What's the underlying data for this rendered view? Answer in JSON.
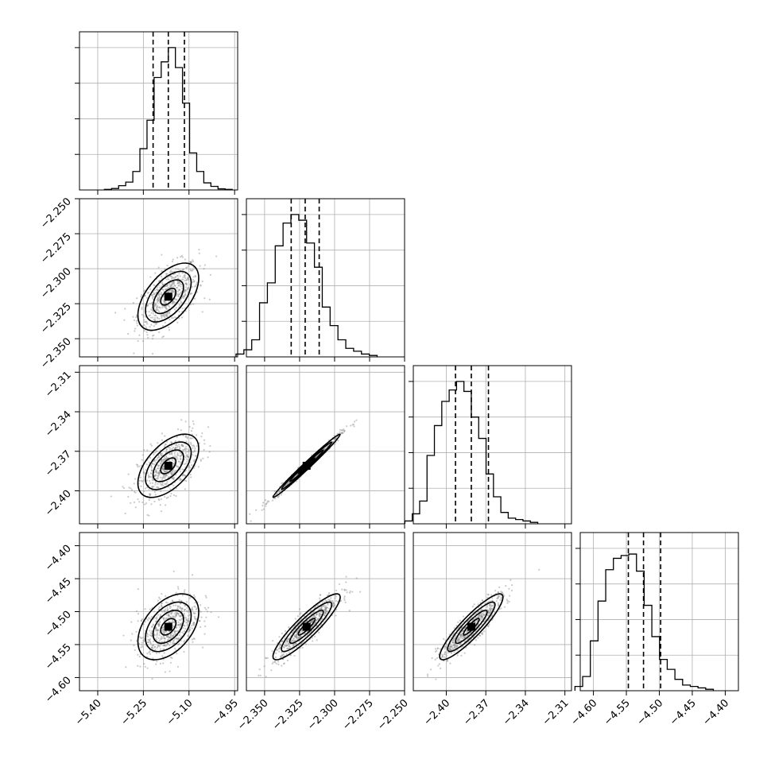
{
  "chart_data": {
    "type": "scatter",
    "parameters": [
      {
        "ticks": [
          "−5.40",
          "−5.25",
          "−5.10",
          "−4.95"
        ],
        "tick_values": [
          -5.4,
          -5.25,
          -5.1,
          -4.95
        ],
        "range": [
          -5.46,
          -4.94
        ],
        "mean": -5.168,
        "sigma": 0.05,
        "quantiles": [
          -5.218,
          -5.168,
          -5.115
        ],
        "histogram": [
          0.004,
          0.01,
          0.03,
          0.055,
          0.13,
          0.29,
          0.49,
          0.79,
          0.9,
          1.0,
          0.86,
          0.61,
          0.26,
          0.13,
          0.05,
          0.025,
          0.008,
          0.004
        ]
      },
      {
        "ticks": [
          "−2.350",
          "−2.325",
          "−2.300",
          "−2.275",
          "−2.250"
        ],
        "tick_values": [
          -2.35,
          -2.325,
          -2.3,
          -2.275,
          -2.25
        ],
        "range": [
          -2.363,
          -2.25
        ],
        "mean": -2.32,
        "sigma": 0.012,
        "quantiles": [
          -2.331,
          -2.321,
          -2.311
        ],
        "histogram": [
          0.02,
          0.05,
          0.12,
          0.38,
          0.52,
          0.78,
          0.94,
          1.0,
          0.96,
          0.8,
          0.63,
          0.35,
          0.22,
          0.12,
          0.06,
          0.04,
          0.02,
          0.01
        ]
      },
      {
        "ticks": [
          "−2.40",
          "−2.37",
          "−2.34",
          "−2.31"
        ],
        "tick_values": [
          -2.4,
          -2.37,
          -2.34,
          -2.31
        ],
        "range": [
          -2.425,
          -2.305
        ],
        "mean": -2.381,
        "sigma": 0.012,
        "quantiles": [
          -2.393,
          -2.381,
          -2.368
        ],
        "histogram": [
          0.02,
          0.07,
          0.16,
          0.48,
          0.69,
          0.86,
          0.94,
          1.0,
          0.93,
          0.75,
          0.6,
          0.35,
          0.19,
          0.08,
          0.04,
          0.03,
          0.02,
          0.01
        ]
      },
      {
        "ticks": [
          "−4.60",
          "−4.55",
          "−4.50",
          "−4.45",
          "−4.40"
        ],
        "tick_values": [
          -4.6,
          -4.55,
          -4.5,
          -4.45,
          -4.4
        ],
        "range": [
          -4.62,
          -4.38
        ],
        "mean": -4.523,
        "sigma": 0.025,
        "quantiles": [
          -4.547,
          -4.524,
          -4.498
        ],
        "histogram": [
          0.03,
          0.1,
          0.35,
          0.63,
          0.85,
          0.93,
          0.95,
          0.96,
          0.84,
          0.6,
          0.38,
          0.22,
          0.15,
          0.08,
          0.04,
          0.03,
          0.02,
          0.01
        ]
      }
    ],
    "correlations": {
      "1_0": 0.55,
      "2_0": 0.55,
      "2_1": 0.99,
      "3_0": 0.45,
      "3_1": 0.9,
      "3_2": 0.9
    },
    "contour_levels_sigma": [
      0.5,
      1.0,
      1.5,
      2.0
    ],
    "grid": true
  }
}
